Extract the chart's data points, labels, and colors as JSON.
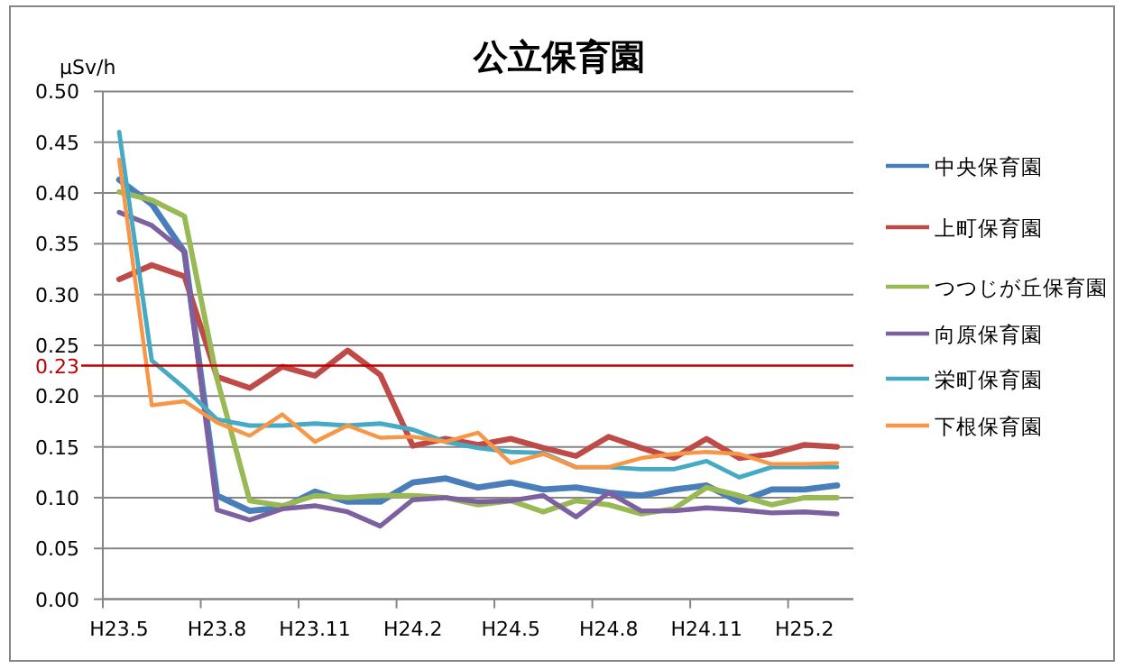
{
  "chart_data": {
    "type": "line",
    "title": "公立保育園",
    "ylabel": "μSv/h",
    "categories": [
      "H23.5",
      null,
      null,
      "H23.8",
      null,
      null,
      "H23.11",
      null,
      null,
      "H24.2",
      null,
      null,
      "H24.5",
      null,
      null,
      "H24.8",
      null,
      null,
      "H24.11",
      null,
      null,
      "H25.2",
      null
    ],
    "series": [
      {
        "name": "中央保育園",
        "color": "#4a7ebb",
        "values": [
          0.413,
          0.389,
          0.342,
          0.102,
          0.087,
          0.09,
          0.106,
          0.096,
          0.096,
          0.115,
          0.119,
          0.11,
          0.115,
          0.108,
          0.11,
          0.105,
          0.102,
          0.108,
          0.112,
          0.096,
          0.108,
          0.108,
          0.112
        ]
      },
      {
        "name": "上町保育園",
        "color": "#be4b48",
        "values": [
          0.315,
          0.329,
          0.318,
          0.219,
          0.208,
          0.229,
          0.22,
          0.245,
          0.221,
          0.151,
          0.158,
          0.152,
          0.158,
          0.149,
          0.141,
          0.16,
          0.149,
          0.139,
          0.158,
          0.139,
          0.143,
          0.152,
          0.15
        ]
      },
      {
        "name": "つつじが丘保育園",
        "color": "#98b954",
        "values": [
          0.401,
          0.393,
          0.377,
          0.217,
          0.097,
          0.092,
          0.102,
          0.1,
          0.102,
          0.102,
          0.1,
          0.093,
          0.097,
          0.086,
          0.097,
          0.093,
          0.084,
          0.089,
          0.11,
          0.102,
          0.093,
          0.1,
          0.1
        ]
      },
      {
        "name": "向原保育園",
        "color": "#7d60a0",
        "values": [
          0.381,
          0.368,
          0.342,
          0.088,
          0.078,
          0.089,
          0.092,
          0.086,
          0.072,
          0.098,
          0.1,
          0.096,
          0.097,
          0.102,
          0.081,
          0.105,
          0.087,
          0.087,
          0.09,
          0.088,
          0.085,
          0.086,
          0.084
        ]
      },
      {
        "name": "栄町保育園",
        "color": "#46aac5",
        "values": [
          0.46,
          0.235,
          0.208,
          0.177,
          0.171,
          0.171,
          0.173,
          0.171,
          0.173,
          0.167,
          0.155,
          0.149,
          0.145,
          0.144,
          0.13,
          0.13,
          0.128,
          0.128,
          0.136,
          0.12,
          0.13,
          0.13,
          0.13
        ]
      },
      {
        "name": "下根保育園",
        "color": "#f79646",
        "values": [
          0.433,
          0.191,
          0.195,
          0.174,
          0.161,
          0.182,
          0.155,
          0.171,
          0.159,
          0.16,
          0.155,
          0.164,
          0.134,
          0.143,
          0.13,
          0.13,
          0.139,
          0.143,
          0.145,
          0.143,
          0.133,
          0.133,
          0.134
        ]
      }
    ],
    "ylim": [
      0,
      0.5
    ],
    "yticks": [
      {
        "value": 0,
        "label": "0.00"
      },
      {
        "value": 0.05,
        "label": "0.05"
      },
      {
        "value": 0.1,
        "label": "0.10"
      },
      {
        "value": 0.15,
        "label": "0.15"
      },
      {
        "value": 0.2,
        "label": "0.20"
      },
      {
        "value": 0.25,
        "label": "0.25"
      },
      {
        "value": 0.3,
        "label": "0.30"
      },
      {
        "value": 0.35,
        "label": "0.35"
      },
      {
        "value": 0.4,
        "label": "0.40"
      },
      {
        "value": 0.45,
        "label": "0.45"
      },
      {
        "value": 0.5,
        "label": "0.50"
      }
    ],
    "ref_lines": [
      {
        "axis": "y",
        "value": 0.23,
        "label": "0.23",
        "color": "#c00000"
      }
    ],
    "grid": "y",
    "legend": "right",
    "marker": "none",
    "line_style": "solid"
  }
}
